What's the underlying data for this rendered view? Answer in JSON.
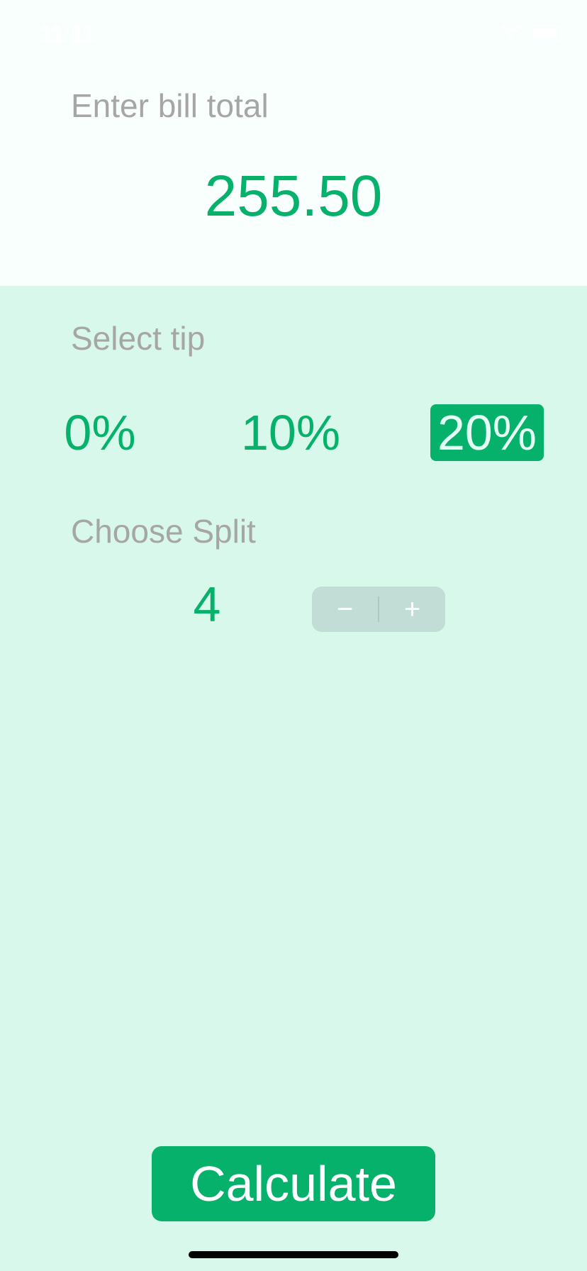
{
  "status_bar": {
    "time": "11:11"
  },
  "bill": {
    "label": "Enter bill total",
    "value": "255.50"
  },
  "tip": {
    "label": "Select tip",
    "options": [
      "0%",
      "10%",
      "20%"
    ],
    "selected": "20%"
  },
  "split": {
    "label": "Choose Split",
    "value": "4",
    "decrement_symbol": "−",
    "increment_symbol": "+"
  },
  "calculate": {
    "label": "Calculate"
  },
  "colors": {
    "accent": "#06b16b",
    "background": "#d7f8ea",
    "top_panel": "#f9fffd",
    "label_gray": "#a6a6a6",
    "stepper_bg": "#c2dcd6"
  },
  "icons": {
    "wifi": "wifi-icon",
    "battery": "battery-icon"
  }
}
